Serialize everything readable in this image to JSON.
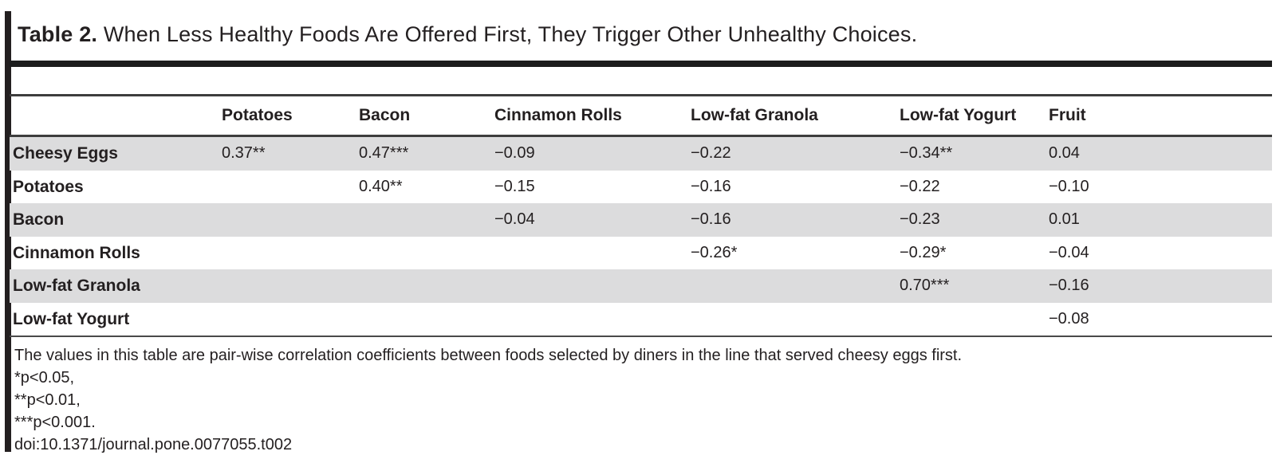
{
  "caption": {
    "label": "Table 2.",
    "text": "When Less Healthy Foods Are Offered First, They Trigger Other Unhealthy Choices."
  },
  "table": {
    "column_headers": [
      "Potatoes",
      "Bacon",
      "Cinnamon Rolls",
      "Low-fat Granola",
      "Low-fat Yogurt",
      "Fruit"
    ],
    "rows": [
      {
        "label": "Cheesy Eggs",
        "values": [
          "0.37**",
          "0.47***",
          "−0.09",
          "−0.22",
          "−0.34**",
          "0.04"
        ]
      },
      {
        "label": "Potatoes",
        "values": [
          "",
          "0.40**",
          "−0.15",
          "−0.16",
          "−0.22",
          "−0.10"
        ]
      },
      {
        "label": "Bacon",
        "values": [
          "",
          "",
          "−0.04",
          "−0.16",
          "−0.23",
          "0.01"
        ]
      },
      {
        "label": "Cinnamon Rolls",
        "values": [
          "",
          "",
          "",
          "−0.26*",
          "−0.29*",
          "−0.04"
        ]
      },
      {
        "label": "Low-fat Granola",
        "values": [
          "",
          "",
          "",
          "",
          "0.70***",
          "−0.16"
        ]
      },
      {
        "label": "Low-fat Yogurt",
        "values": [
          "",
          "",
          "",
          "",
          "",
          "−0.08"
        ]
      }
    ]
  },
  "footnotes": {
    "description": "The values in this table are pair-wise correlation coefficients between foods selected by diners in the line that served cheesy eggs first.",
    "sig_005": "*p<0.05,",
    "sig_001": "**p<0.01,",
    "sig_0001": "***p<0.001.",
    "doi": "doi:10.1371/journal.pone.0077055.t002"
  },
  "colors": {
    "stripe_gray": "#dcdcdd",
    "text": "#231f20",
    "thick_rule": "#1d1d1d",
    "thin_rule": "#3d3d3d"
  }
}
